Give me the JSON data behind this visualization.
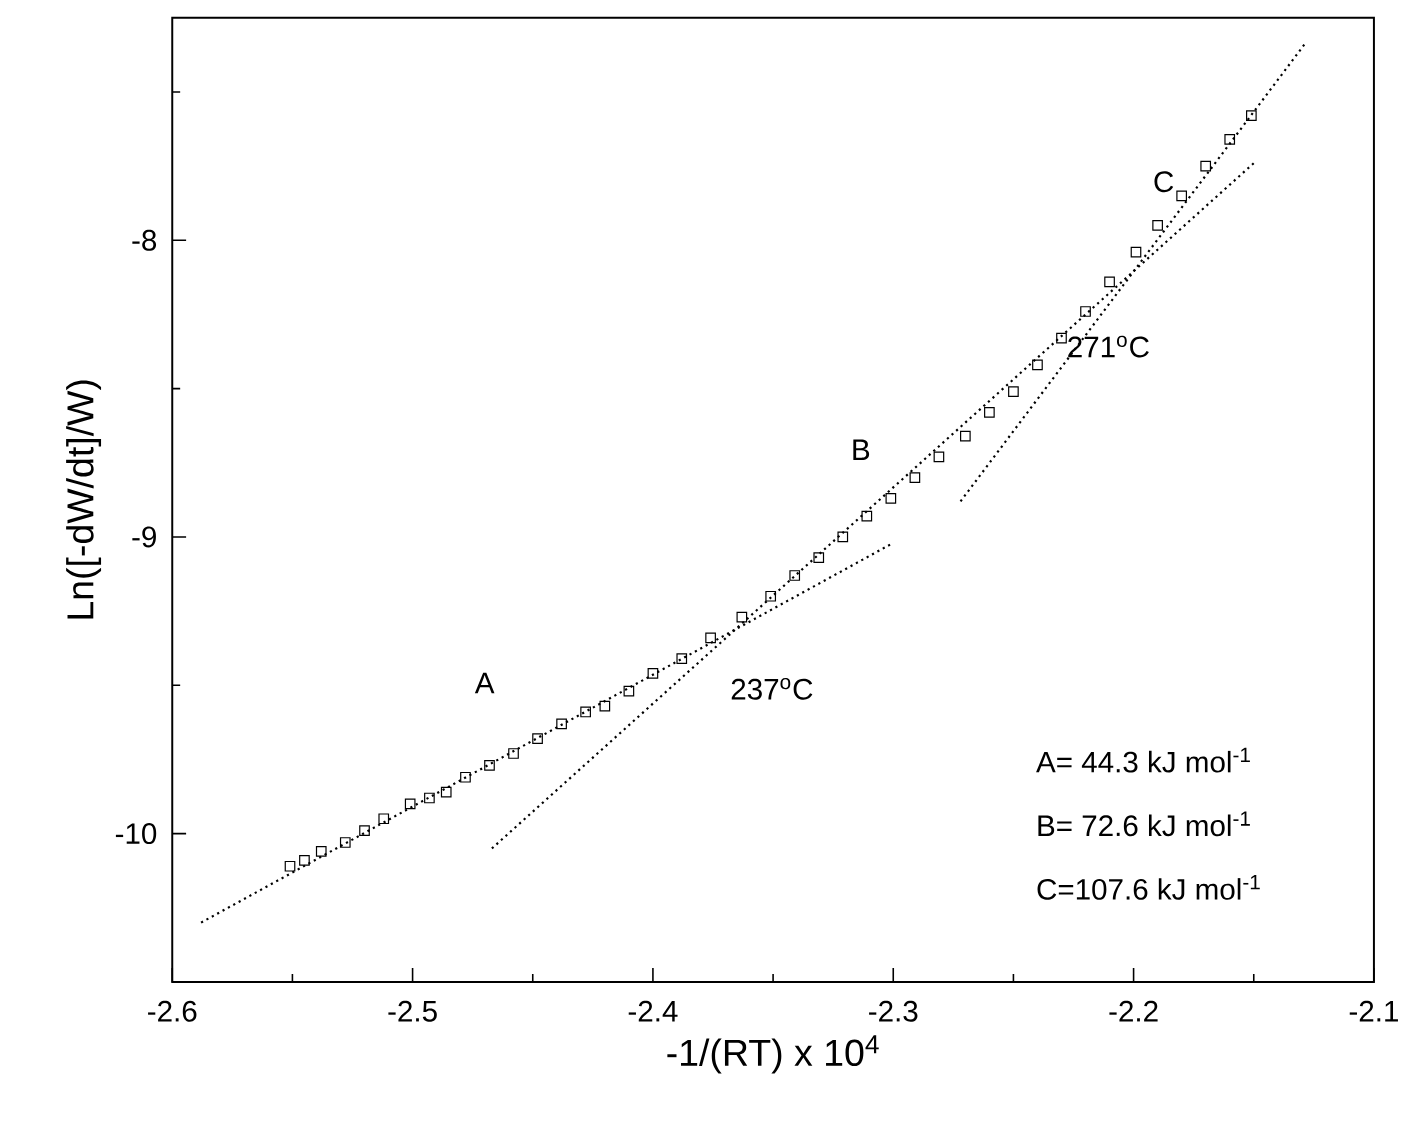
{
  "chart_data": {
    "type": "scatter",
    "xlabel": "-1/(RT) x 10$^{4}$",
    "ylabel": "Ln([-dW/dt]/W)",
    "xlim": [
      -2.6,
      -2.1
    ],
    "ylim": [
      -10.5,
      -7.25
    ],
    "xticks": [
      -2.6,
      {
        "value": -2.55,
        "label": null
      },
      -2.5,
      {
        "value": -2.45,
        "label": null
      },
      -2.4,
      {
        "value": -2.35,
        "label": null
      },
      -2.3,
      {
        "value": -2.25,
        "label": null
      },
      -2.2,
      {
        "value": -2.15,
        "label": null
      },
      -2.1
    ],
    "yticks": [
      {
        "value": -10.5,
        "label": null
      },
      -10,
      {
        "value": -9.5,
        "label": null
      },
      -9,
      {
        "value": -8.5,
        "label": null
      },
      -8,
      {
        "value": -7.5,
        "label": null
      }
    ],
    "grid": false,
    "series": [
      {
        "marker": "square",
        "color": "#000000",
        "x": [
          -2.551,
          -2.545,
          -2.538,
          -2.528,
          -2.52,
          -2.512,
          -2.501,
          -2.493,
          -2.486,
          -2.478,
          -2.468,
          -2.458,
          -2.448,
          -2.438,
          -2.428,
          -2.42,
          -2.41,
          -2.4,
          -2.388,
          -2.376,
          -2.363,
          -2.351,
          -2.341,
          -2.331,
          -2.321,
          -2.311,
          -2.301,
          -2.291,
          -2.281,
          -2.27,
          -2.26,
          -2.25,
          -2.24,
          -2.23,
          -2.22,
          -2.21,
          -2.199,
          -2.19,
          -2.18,
          -2.17,
          -2.16,
          -2.151
        ],
        "values": [
          -10.11,
          -10.09,
          -10.06,
          -10.03,
          -9.99,
          -9.95,
          -9.9,
          -9.88,
          -9.86,
          -9.81,
          -9.77,
          -9.73,
          -9.68,
          -9.63,
          -9.59,
          -9.57,
          -9.52,
          -9.46,
          -9.41,
          -9.34,
          -9.27,
          -9.2,
          -9.13,
          -9.07,
          -9.0,
          -8.93,
          -8.87,
          -8.8,
          -8.73,
          -8.66,
          -8.58,
          -8.51,
          -8.42,
          -8.33,
          -8.24,
          -8.14,
          -8.04,
          -7.95,
          -7.85,
          -7.75,
          -7.66,
          -7.58
        ]
      },
      {
        "type": "line",
        "marker": "none",
        "line_style": "dotted",
        "color": "#000000",
        "x": [
          -2.588,
          -2.3
        ],
        "values": [
          -10.3,
          -9.02
        ]
      },
      {
        "type": "line",
        "marker": "none",
        "line_style": "dotted",
        "color": "#000000",
        "x": [
          -2.467,
          -2.15
        ],
        "values": [
          -10.05,
          -7.74
        ]
      },
      {
        "type": "line",
        "marker": "none",
        "line_style": "dotted",
        "color": "#000000",
        "x": [
          -2.272,
          -2.128
        ],
        "values": [
          -8.88,
          -7.33
        ]
      }
    ],
    "annotations": [
      "A",
      "B",
      "C",
      "237$^{o}$C",
      "271$^{o}$C",
      "A=  44.3 kJ mol$^{-1}$",
      "B=  72.6 kJ mol$^{-1}$",
      "C=107.6 kJ mol$^{-1}$"
    ]
  }
}
